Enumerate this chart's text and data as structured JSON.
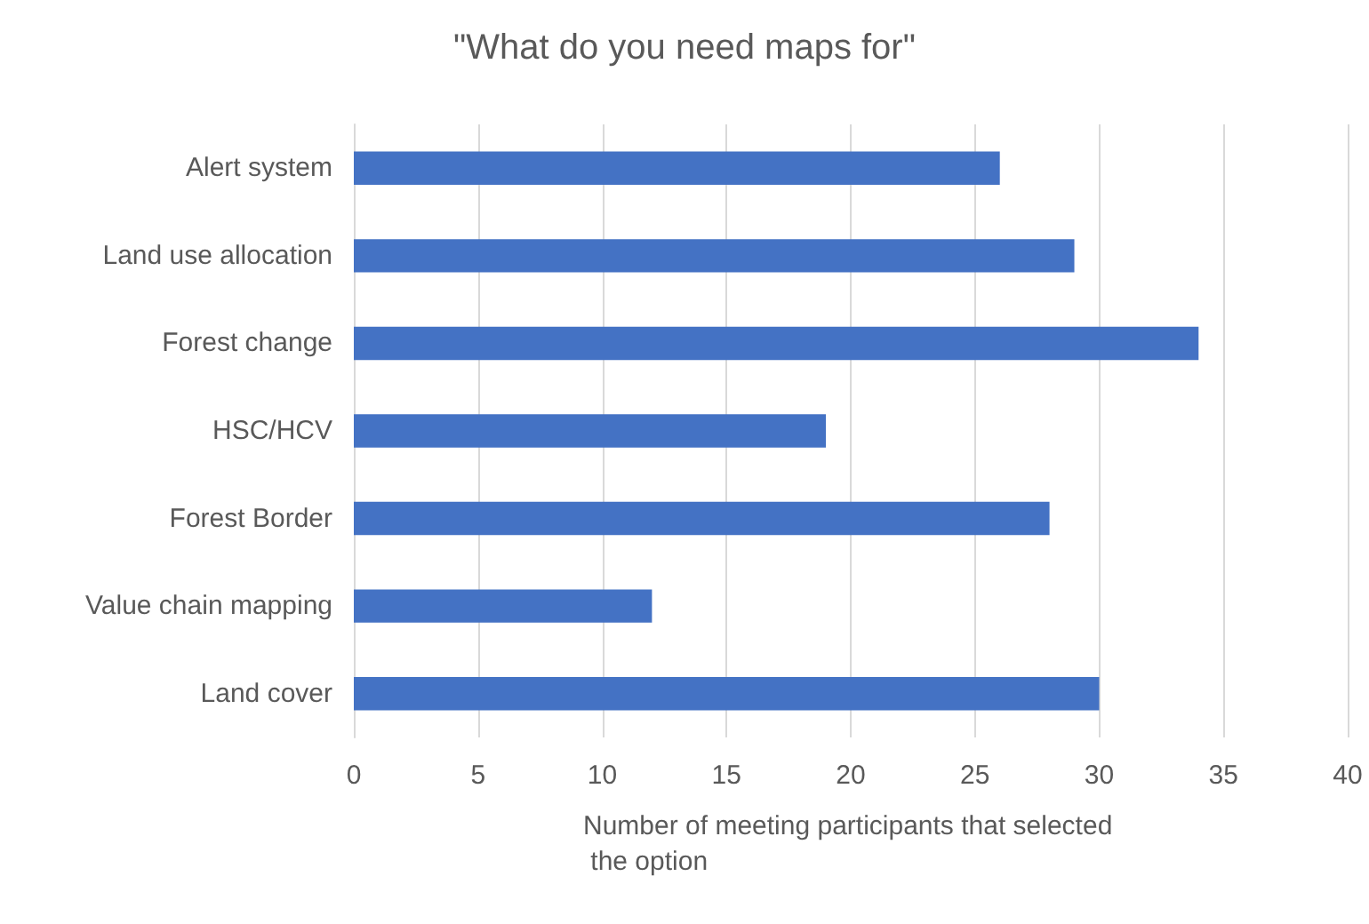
{
  "chart_data": {
    "type": "bar",
    "orientation": "horizontal",
    "title": "\"What do you need maps for\"",
    "categories": [
      "Alert system",
      "Land use allocation",
      "Forest change",
      "HSC/HCV",
      "Forest Border",
      "Value chain mapping",
      "Land cover"
    ],
    "values": [
      26,
      29,
      34,
      19,
      28,
      12,
      30
    ],
    "color": "#4472c4",
    "xlabel": "Number of meeting participants that selected the option",
    "xlim": [
      0,
      40
    ],
    "xticks": [
      0,
      5,
      10,
      15,
      20,
      25,
      30,
      35,
      40
    ],
    "grid": "x"
  }
}
